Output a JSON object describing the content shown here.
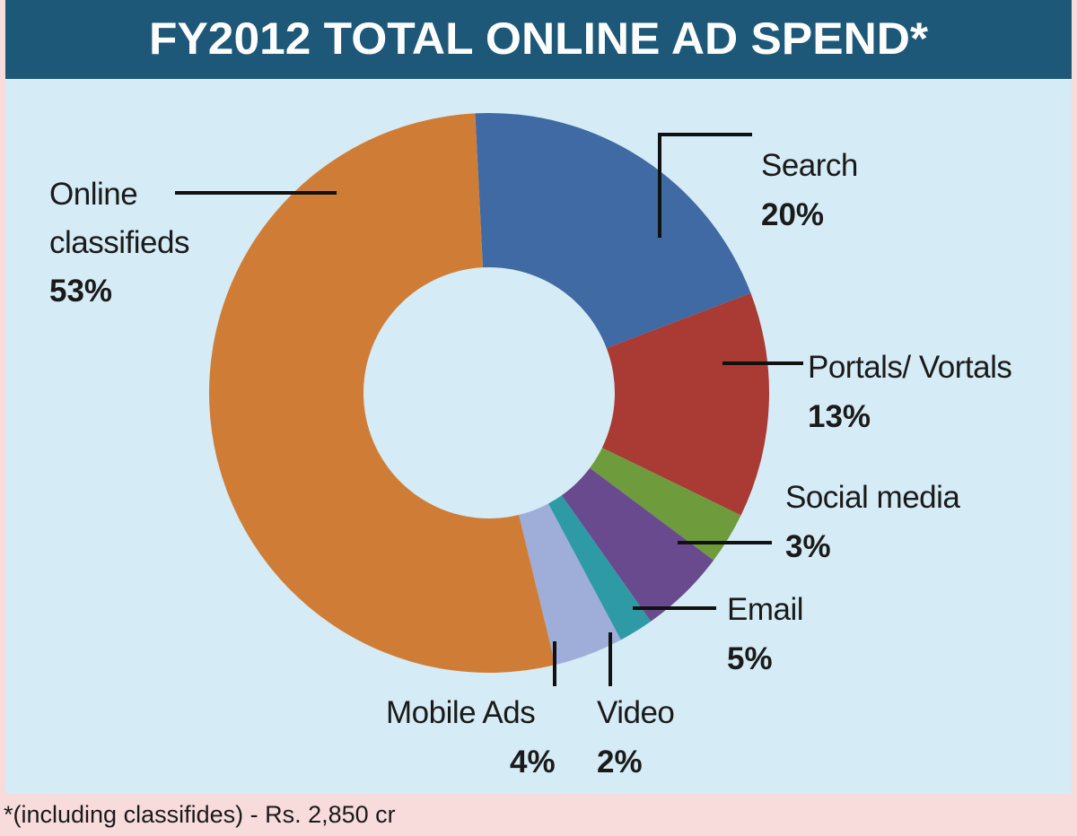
{
  "chart_data": {
    "type": "pie",
    "title": "FY2012 TOTAL ONLINE AD SPEND*",
    "categories": [
      "Search",
      "Portals/ Vortals",
      "Social media",
      "Email",
      "Video",
      "Mobile Ads",
      "Online classifieds"
    ],
    "values": [
      20,
      13,
      3,
      5,
      2,
      4,
      53
    ],
    "value_labels": [
      "20%",
      "13%",
      "3%",
      "5%",
      "2%",
      "4%",
      "53%"
    ],
    "colors": [
      "#3f6aa3",
      "#a93a34",
      "#6e9b3b",
      "#6a4a8e",
      "#2d9aa6",
      "#9eaed8",
      "#cf7d36"
    ],
    "footnote": "*(including classifides) - Rs. 2,850 cr"
  }
}
